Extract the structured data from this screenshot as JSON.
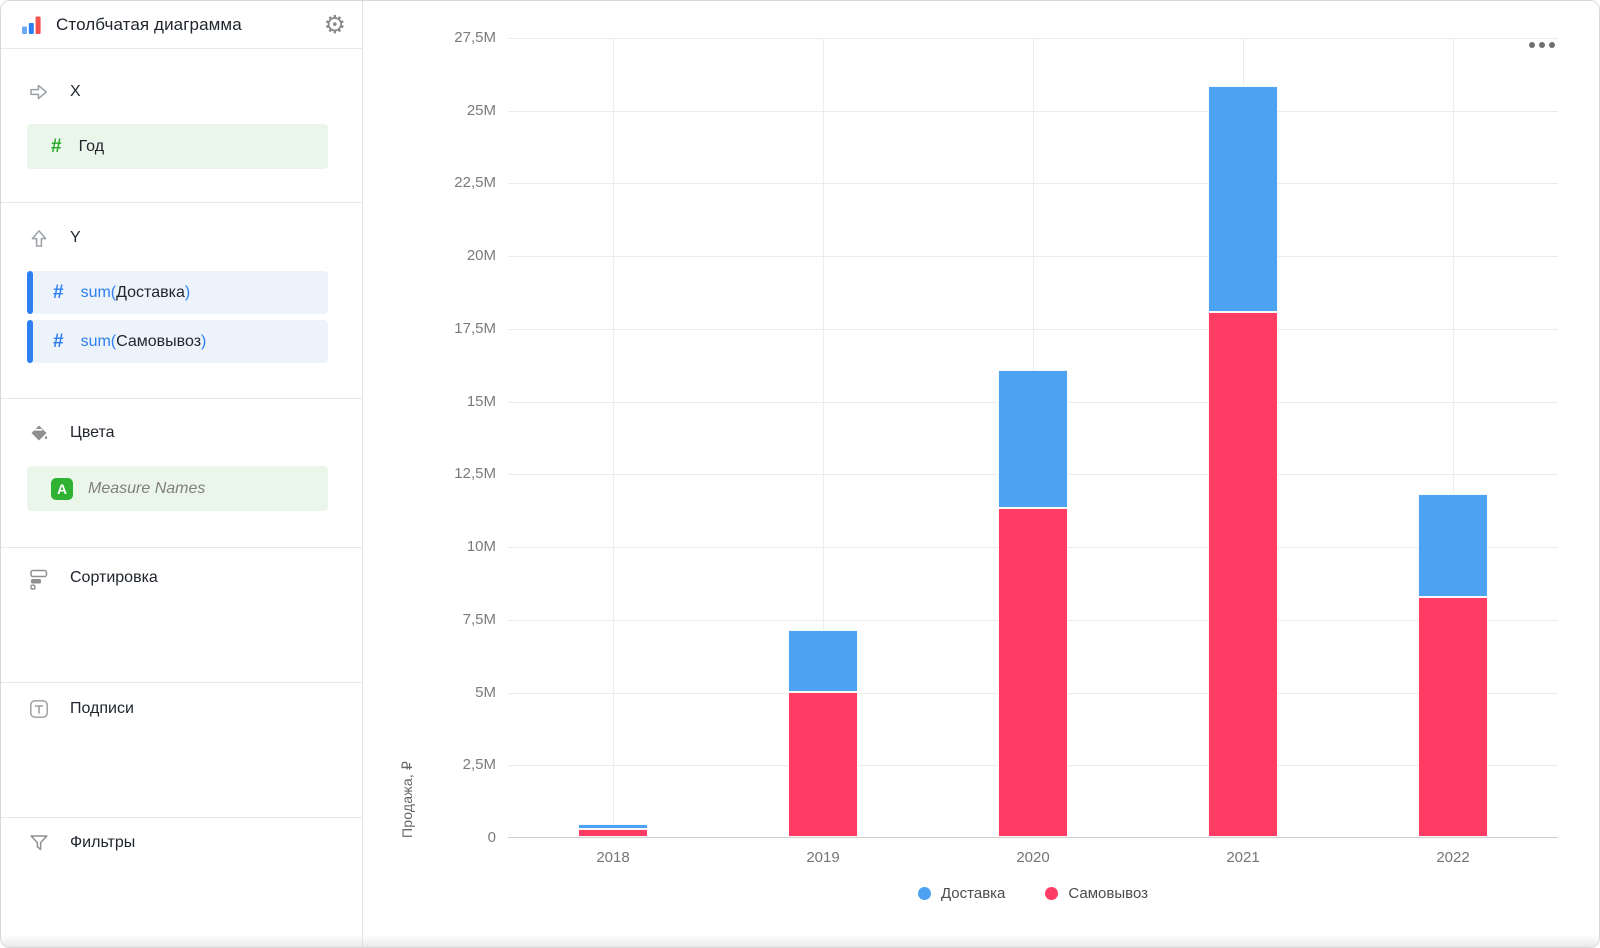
{
  "app": {
    "title": "Столбчатая диаграмма"
  },
  "icons": {
    "gear": "⚙",
    "number_field": "#",
    "attribute_badge": "A"
  },
  "sidebar": {
    "x": {
      "label": "X",
      "field": "Год"
    },
    "y": {
      "label": "Y",
      "fields": [
        {
          "prefix": "sum(",
          "name": "Доставка",
          "suffix": ")"
        },
        {
          "prefix": "sum(",
          "name": "Самовывоз",
          "suffix": ")"
        }
      ]
    },
    "colors": {
      "label": "Цвета",
      "field": "Measure Names"
    },
    "sorting": {
      "label": "Сортировка"
    },
    "labels": {
      "label": "Подписи"
    },
    "filters": {
      "label": "Фильтры"
    }
  },
  "chart_data": {
    "type": "bar",
    "stacked": true,
    "title": "",
    "categories": [
      "2018",
      "2019",
      "2020",
      "2021",
      "2022"
    ],
    "series": [
      {
        "name": "Доставка",
        "color": "#4DA2F1",
        "values_millions": [
          0.17,
          2.1,
          4.75,
          7.75,
          3.55
        ]
      },
      {
        "name": "Самовывоз",
        "color": "#FF3D64",
        "values_millions": [
          0.28,
          5.0,
          11.3,
          18.05,
          8.25
        ]
      }
    ],
    "stack_order_bottom_to_top": [
      "Самовывоз",
      "Доставка"
    ],
    "totals_millions": [
      0.45,
      7.1,
      16.05,
      25.8,
      11.8
    ],
    "xlabel": "",
    "ylabel": "Продажа, ₽",
    "ylim_millions": [
      0,
      27.5
    ],
    "yticks": [
      {
        "v": 0,
        "label": "0"
      },
      {
        "v": 2.5,
        "label": "2,5M"
      },
      {
        "v": 5,
        "label": "5M"
      },
      {
        "v": 7.5,
        "label": "7,5M"
      },
      {
        "v": 10,
        "label": "10M"
      },
      {
        "v": 12.5,
        "label": "12,5M"
      },
      {
        "v": 15,
        "label": "15M"
      },
      {
        "v": 17.5,
        "label": "17,5M"
      },
      {
        "v": 20,
        "label": "20M"
      },
      {
        "v": 22.5,
        "label": "22,5M"
      },
      {
        "v": 25,
        "label": "25M"
      },
      {
        "v": 27.5,
        "label": "27,5M"
      }
    ],
    "grid": true,
    "legend_position": "bottom"
  }
}
